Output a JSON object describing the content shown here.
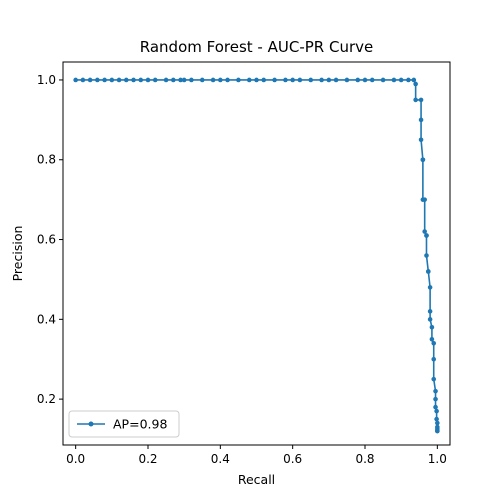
{
  "chart_data": {
    "type": "line",
    "title": "Random Forest - AUC-PR Curve",
    "xlabel": "Recall",
    "ylabel": "Precision",
    "xlim": [
      -0.035,
      1.035
    ],
    "ylim": [
      0.085,
      1.045
    ],
    "xticks": [
      0.0,
      0.2,
      0.4,
      0.6,
      0.8,
      1.0
    ],
    "xtick_labels": [
      "0.0",
      "0.2",
      "0.4",
      "0.6",
      "0.8",
      "1.0"
    ],
    "yticks": [
      0.2,
      0.4,
      0.6,
      0.8,
      1.0
    ],
    "ytick_labels": [
      "0.2",
      "0.4",
      "0.6",
      "0.8",
      "1.0"
    ],
    "grid": false,
    "legend_position": "lower-left",
    "series": [
      {
        "name": "AP=0.98",
        "color": "#1f77b4",
        "marker": "dot",
        "x": [
          0.0,
          0.02,
          0.04,
          0.06,
          0.08,
          0.1,
          0.12,
          0.14,
          0.16,
          0.18,
          0.2,
          0.22,
          0.25,
          0.27,
          0.29,
          0.3,
          0.32,
          0.35,
          0.38,
          0.4,
          0.42,
          0.45,
          0.48,
          0.5,
          0.52,
          0.55,
          0.58,
          0.6,
          0.62,
          0.65,
          0.68,
          0.7,
          0.72,
          0.75,
          0.78,
          0.8,
          0.82,
          0.85,
          0.88,
          0.9,
          0.92,
          0.935,
          0.94,
          0.94,
          0.955,
          0.955,
          0.955,
          0.96,
          0.96,
          0.96,
          0.965,
          0.965,
          0.97,
          0.97,
          0.97,
          0.975,
          0.975,
          0.98,
          0.98,
          0.98,
          0.985,
          0.985,
          0.99,
          0.99,
          0.99,
          0.995,
          0.995,
          0.995,
          0.998,
          0.998,
          1.0,
          1.0,
          1.0,
          1.0,
          1.0
        ],
        "y": [
          1.0,
          1.0,
          1.0,
          1.0,
          1.0,
          1.0,
          1.0,
          1.0,
          1.0,
          1.0,
          1.0,
          1.0,
          1.0,
          1.0,
          1.0,
          1.0,
          1.0,
          1.0,
          1.0,
          1.0,
          1.0,
          1.0,
          1.0,
          1.0,
          1.0,
          1.0,
          1.0,
          1.0,
          1.0,
          1.0,
          1.0,
          1.0,
          1.0,
          1.0,
          1.0,
          1.0,
          1.0,
          1.0,
          1.0,
          1.0,
          1.0,
          1.0,
          0.99,
          0.95,
          0.95,
          0.9,
          0.85,
          0.8,
          0.8,
          0.7,
          0.7,
          0.62,
          0.61,
          0.61,
          0.56,
          0.52,
          0.52,
          0.48,
          0.42,
          0.4,
          0.38,
          0.35,
          0.34,
          0.3,
          0.25,
          0.22,
          0.2,
          0.18,
          0.17,
          0.15,
          0.14,
          0.13,
          0.125,
          0.12,
          0.12
        ]
      }
    ]
  }
}
